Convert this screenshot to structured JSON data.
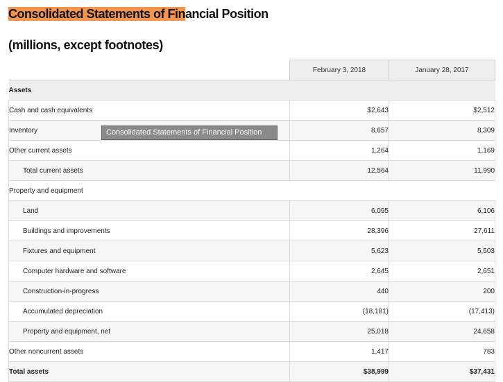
{
  "title_highlighted": "Consolidated Statements of Fin",
  "title_rest": "ancial Position",
  "subtitle": "(millions, except footnotes)",
  "columns": [
    "February 3, 2018",
    "January 28, 2017"
  ],
  "rows": [
    {
      "label": "Assets",
      "v1": "",
      "v2": ""
    },
    {
      "label": "Cash and cash equivalents",
      "v1": "$2,643",
      "v2": "$2,512"
    },
    {
      "label": "Inventory",
      "v1": "8,657",
      "v2": "8,309"
    },
    {
      "label": "Other current assets",
      "v1": "1,264",
      "v2": "1,169"
    },
    {
      "label": "Total current assets",
      "v1": "12,564",
      "v2": "11,990"
    },
    {
      "label": "Property and equipment",
      "v1": "",
      "v2": ""
    },
    {
      "label": "Land",
      "v1": "6,095",
      "v2": "6,106"
    },
    {
      "label": "Buildings and improvements",
      "v1": "28,396",
      "v2": "27,611"
    },
    {
      "label": "Fixtures and equipment",
      "v1": "5,623",
      "v2": "5,503"
    },
    {
      "label": "Computer hardware and software",
      "v1": "2,645",
      "v2": "2,651"
    },
    {
      "label": "Construction-in-progress",
      "v1": "440",
      "v2": "200"
    },
    {
      "label": "Accumulated depreciation",
      "v1": "(18,181)",
      "v2": "(17,413)"
    },
    {
      "label": "Property and equipment, net",
      "v1": "25,018",
      "v2": "24,658"
    },
    {
      "label": "Other noncurrent assets",
      "v1": "1,417",
      "v2": "783"
    },
    {
      "label": "Total assets",
      "v1": "$38,999",
      "v2": "$37,431"
    }
  ],
  "tooltip": "Consolidated Statements of Financial Position"
}
